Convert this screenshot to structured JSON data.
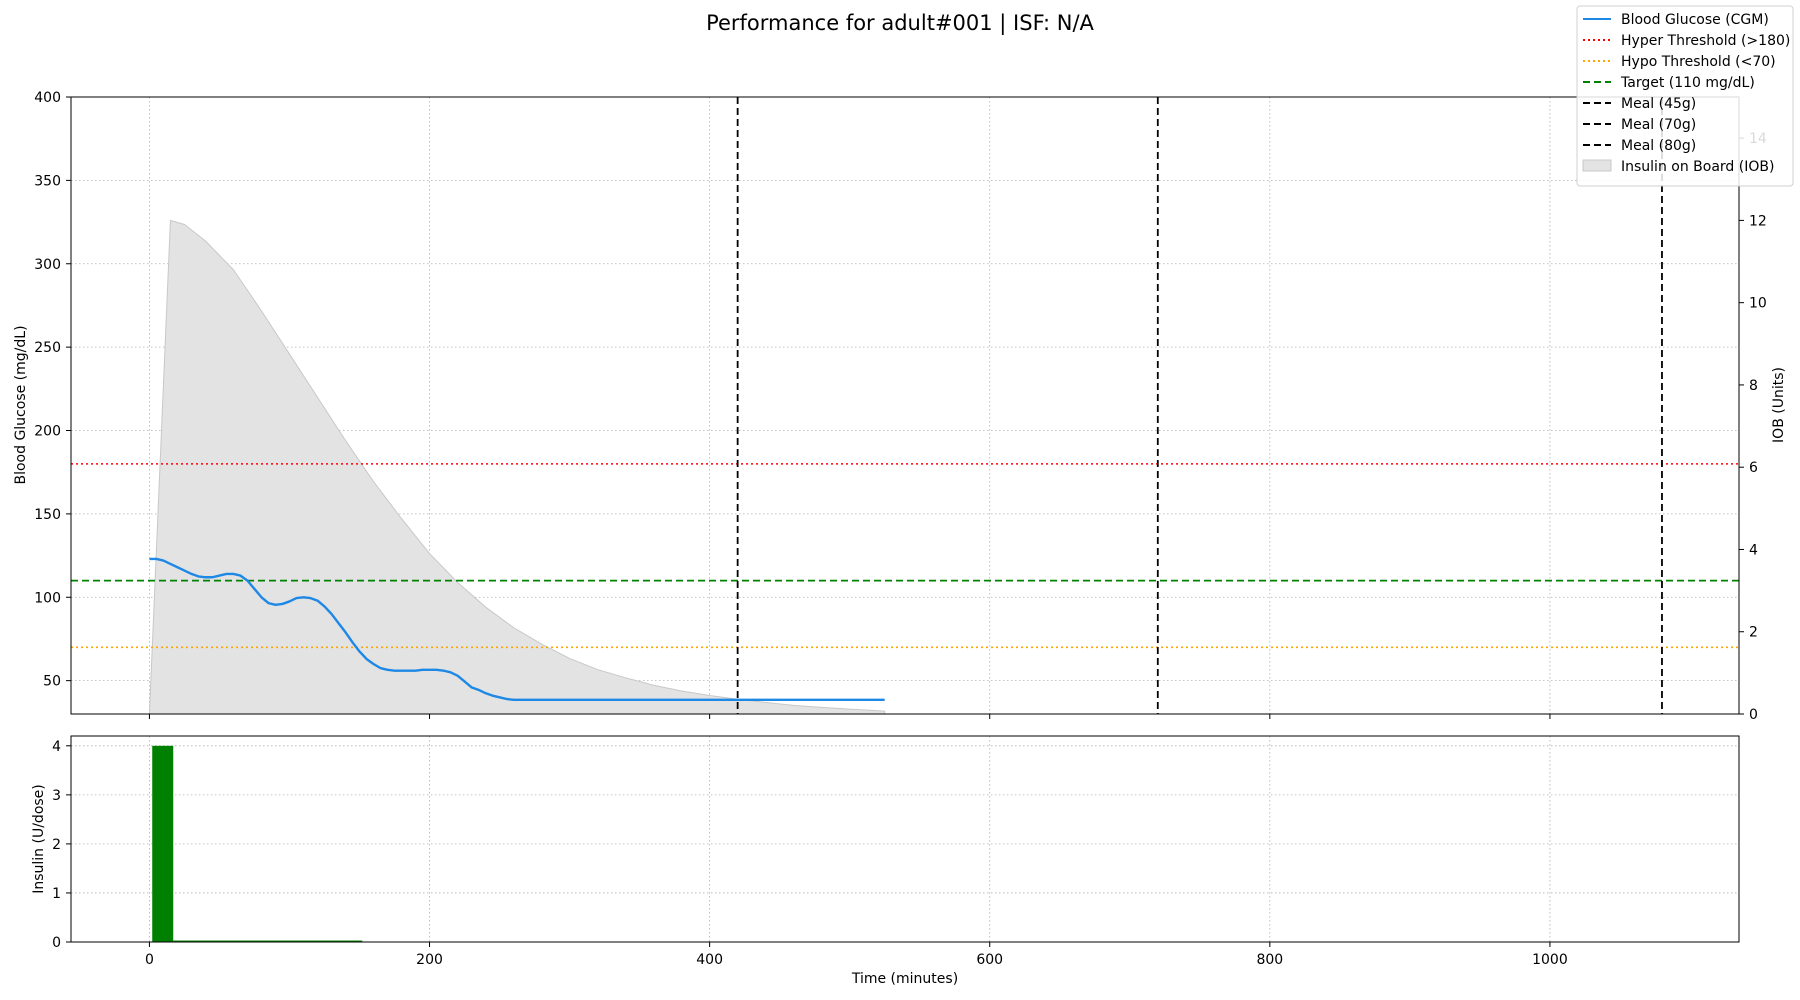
{
  "chart_data": {
    "type": "line",
    "title": "Performance for adult#001 | ISF: N/A",
    "main_panel": {
      "ylabel": "Blood Glucose (mg/dL)",
      "ylabel_right": "IOB (Units)",
      "xlim": [
        -56,
        1135
      ],
      "ylim": [
        30,
        400
      ],
      "ylim_right": [
        0,
        15
      ],
      "yticks": [
        50,
        100,
        150,
        200,
        250,
        300,
        350,
        400
      ],
      "yticks_right": [
        0,
        2,
        4,
        6,
        8,
        10,
        12,
        14
      ],
      "grid": true,
      "legend_position": "top-right",
      "series": [
        {
          "name": "Blood Glucose (CGM)",
          "color": "#1e88e5",
          "style": "solid",
          "x": [
            0,
            5,
            10,
            15,
            20,
            25,
            30,
            35,
            40,
            45,
            50,
            55,
            60,
            65,
            70,
            75,
            80,
            85,
            90,
            95,
            100,
            105,
            110,
            115,
            120,
            125,
            130,
            135,
            140,
            145,
            150,
            155,
            160,
            165,
            170,
            175,
            180,
            185,
            190,
            195,
            200,
            205,
            210,
            215,
            220,
            225,
            230,
            235,
            240,
            245,
            250,
            255,
            260,
            265,
            270,
            300,
            350,
            400,
            450,
            500,
            525
          ],
          "y": [
            123,
            123,
            122,
            120,
            118,
            116,
            114,
            112.5,
            112,
            112,
            113,
            114,
            114,
            113,
            110,
            105,
            100,
            96.5,
            95.5,
            96,
            97.5,
            99.5,
            100,
            99.5,
            98,
            94.5,
            90,
            84.5,
            79,
            73,
            67.5,
            63,
            60,
            57.5,
            56.5,
            56,
            56,
            56,
            56,
            56.5,
            56.5,
            56.5,
            56,
            55,
            53,
            49.5,
            46,
            44.5,
            42.5,
            41,
            40,
            39,
            38.5,
            38.5,
            38.5,
            38.5,
            38.5,
            38.5,
            38.5,
            38.5,
            38.5
          ]
        },
        {
          "name": "Insulin on Board (IOB)",
          "axis": "right",
          "type": "area",
          "color": "#e3e3e3",
          "x": [
            0,
            15,
            25,
            40,
            60,
            80,
            100,
            120,
            140,
            160,
            180,
            200,
            220,
            240,
            260,
            280,
            300,
            320,
            340,
            360,
            380,
            400,
            420,
            440,
            460,
            480,
            500,
            525
          ],
          "y": [
            0,
            12,
            11.9,
            11.5,
            10.8,
            9.8,
            8.75,
            7.7,
            6.65,
            5.65,
            4.75,
            3.9,
            3.2,
            2.6,
            2.1,
            1.7,
            1.35,
            1.08,
            0.88,
            0.7,
            0.56,
            0.45,
            0.36,
            0.28,
            0.21,
            0.16,
            0.12,
            0.07
          ]
        }
      ],
      "reference_lines": [
        {
          "name": "Hyper Threshold (>180)",
          "orientation": "horizontal",
          "value": 180,
          "color": "#ff0000",
          "style": "dotted"
        },
        {
          "name": "Hypo Threshold (<70)",
          "orientation": "horizontal",
          "value": 70,
          "color": "#ffa500",
          "style": "dotted"
        },
        {
          "name": "Target (110 mg/dL)",
          "orientation": "horizontal",
          "value": 110,
          "color": "#008000",
          "style": "dashed"
        },
        {
          "name": "Meal (45g)",
          "orientation": "vertical",
          "value": 420,
          "color": "#000000",
          "style": "dashed"
        },
        {
          "name": "Meal (70g)",
          "orientation": "vertical",
          "value": 720,
          "color": "#000000",
          "style": "dashed"
        },
        {
          "name": "Meal (80g)",
          "orientation": "vertical",
          "value": 1080,
          "color": "#000000",
          "style": "dashed"
        }
      ]
    },
    "insulin_panel": {
      "type": "bar",
      "ylabel": "Insulin (U/dose)",
      "xlabel": "Time (minutes)",
      "xticks": [
        0,
        200,
        400,
        600,
        800,
        1000
      ],
      "ylim": [
        0,
        4.2
      ],
      "yticks": [
        0,
        1,
        2,
        3,
        4
      ],
      "color": "#008000",
      "grid": true,
      "bars": [
        {
          "x": 2,
          "width": 15,
          "value": 4
        },
        {
          "x": 17,
          "width": 135,
          "value": 0.03
        }
      ]
    }
  }
}
